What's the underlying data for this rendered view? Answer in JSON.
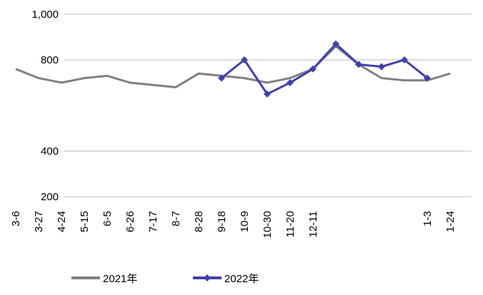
{
  "chart_data": {
    "type": "line",
    "categories": [
      "3-6",
      "3-27",
      "4-24",
      "5-15",
      "6-5",
      "6-26",
      "7-17",
      "8-7",
      "8-28",
      "9-18",
      "10-9",
      "10-30",
      "11-20",
      "12-11",
      null,
      null,
      null,
      null,
      "1-3",
      "1-24"
    ],
    "series": [
      {
        "name": "2021年",
        "color": "#808080",
        "values": [
          760,
          720,
          700,
          720,
          730,
          700,
          690,
          680,
          740,
          730,
          720,
          700,
          720,
          760,
          860,
          780,
          720,
          710,
          710,
          740
        ]
      },
      {
        "name": "2022年",
        "color": "#4040b0",
        "values": [
          null,
          null,
          null,
          null,
          null,
          null,
          null,
          null,
          null,
          720,
          800,
          650,
          700,
          760,
          870,
          780,
          770,
          800,
          720,
          null
        ]
      }
    ],
    "ylim": [
      200,
      1000
    ],
    "yticks": [
      200,
      400,
      800,
      {
        "value": 1000,
        "label": "1,000"
      }
    ],
    "grid": true
  }
}
